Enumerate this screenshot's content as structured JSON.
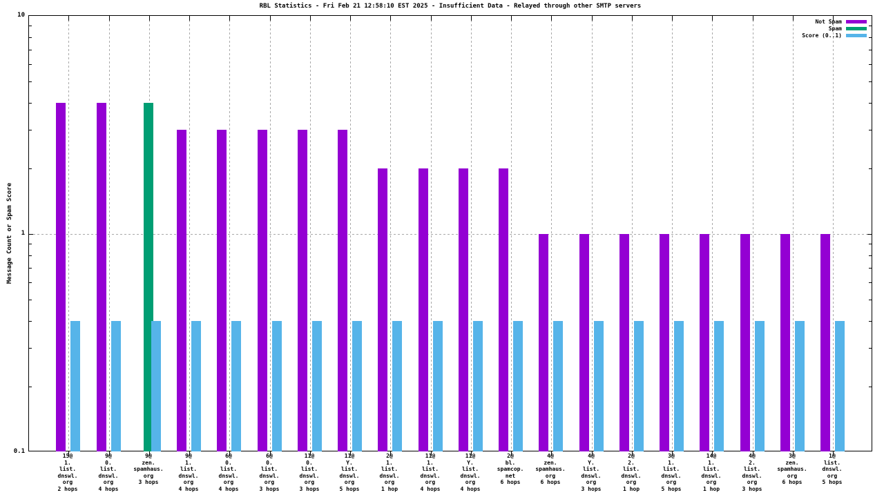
{
  "title": "RBL Statistics - Fri Feb 21 12:58:10 EST 2025 - Insufficient Data - Relayed through other SMTP servers",
  "ylabel": "Message Count or Spam Score",
  "colors": {
    "not_spam": "#9400d3",
    "spam": "#009e73",
    "score": "#56b4e9",
    "grid": "#a8a8a8",
    "axis": "#000000",
    "background": "#ffffff"
  },
  "legend": {
    "position": "top-right",
    "entries": [
      {
        "label": "Not Spam",
        "color": "#9400d3"
      },
      {
        "label": "Spam",
        "color": "#009e73"
      },
      {
        "label": "Score (0..1)",
        "color": "#56b4e9"
      }
    ]
  },
  "chart_data": {
    "type": "bar",
    "yscale": "log",
    "ylim": [
      0.1,
      10
    ],
    "y_major_ticks": [
      "10",
      "1",
      "0.1"
    ],
    "y_minor_tick_values": [
      0.2,
      0.3,
      0.4,
      0.5,
      0.6,
      0.7,
      0.8,
      0.9,
      2,
      3,
      4,
      5,
      6,
      7,
      8,
      9
    ],
    "grid": true,
    "categories": [
      [
        "15@",
        "1.",
        "list.",
        "dnswl.",
        "org",
        "2 hops"
      ],
      [
        "9@",
        "0.",
        "list.",
        "dnswl.",
        "org",
        "4 hops"
      ],
      [
        "9@",
        "zen.",
        "spamhaus.",
        "org",
        "3 hops"
      ],
      [
        "9@",
        "1.",
        "list.",
        "dnswl.",
        "org",
        "4 hops"
      ],
      [
        "6@",
        "0.",
        "list.",
        "dnswl.",
        "org",
        "4 hops"
      ],
      [
        "6@",
        "0.",
        "list.",
        "dnswl.",
        "org",
        "3 hops"
      ],
      [
        "11@",
        "0.",
        "list.",
        "dnswl.",
        "org",
        "3 hops"
      ],
      [
        "11@",
        "Y.",
        "list.",
        "dnswl.",
        "org",
        "5 hops"
      ],
      [
        "2@",
        "1.",
        "list.",
        "dnswl.",
        "org",
        "1 hop"
      ],
      [
        "11@",
        "1.",
        "list.",
        "dnswl.",
        "org",
        "4 hops"
      ],
      [
        "11@",
        "Y.",
        "list.",
        "dnswl.",
        "org",
        "4 hops"
      ],
      [
        "2@",
        "bl.",
        "spamcop.",
        "net",
        "6 hops"
      ],
      [
        "4@",
        "zen.",
        "spamhaus.",
        "org",
        "6 hops"
      ],
      [
        "4@",
        "Y.",
        "list.",
        "dnswl.",
        "org",
        "3 hops"
      ],
      [
        "2@",
        "2.",
        "list.",
        "dnswl.",
        "org",
        "1 hop"
      ],
      [
        "3@",
        "1.",
        "list.",
        "dnswl.",
        "org",
        "5 hops"
      ],
      [
        "14@",
        "1.",
        "list.",
        "dnswl.",
        "org",
        "1 hop"
      ],
      [
        "4@",
        "2.",
        "list.",
        "dnswl.",
        "org",
        "3 hops"
      ],
      [
        "3@",
        "zen.",
        "spamhaus.",
        "org",
        "6 hops"
      ],
      [
        "1@",
        "list.",
        "dnswl.",
        "org",
        "5 hops"
      ]
    ],
    "series": [
      {
        "name": "Not Spam",
        "color": "#9400d3",
        "values": [
          4,
          4,
          0,
          3,
          3,
          3,
          3,
          3,
          2,
          2,
          2,
          2,
          1,
          1,
          1,
          1,
          1,
          1,
          1,
          1
        ]
      },
      {
        "name": "Spam",
        "color": "#009e73",
        "values": [
          0,
          0,
          4,
          0,
          0,
          0,
          0,
          0,
          0,
          0,
          0,
          0,
          0,
          0,
          0,
          0,
          0,
          0,
          0,
          0
        ]
      },
      {
        "name": "Score (0..1)",
        "color": "#56b4e9",
        "values": [
          0.4,
          0.4,
          0.4,
          0.4,
          0.4,
          0.4,
          0.4,
          0.4,
          0.4,
          0.4,
          0.4,
          0.4,
          0.4,
          0.4,
          0.4,
          0.4,
          0.4,
          0.4,
          0.4,
          0.4
        ]
      }
    ]
  }
}
